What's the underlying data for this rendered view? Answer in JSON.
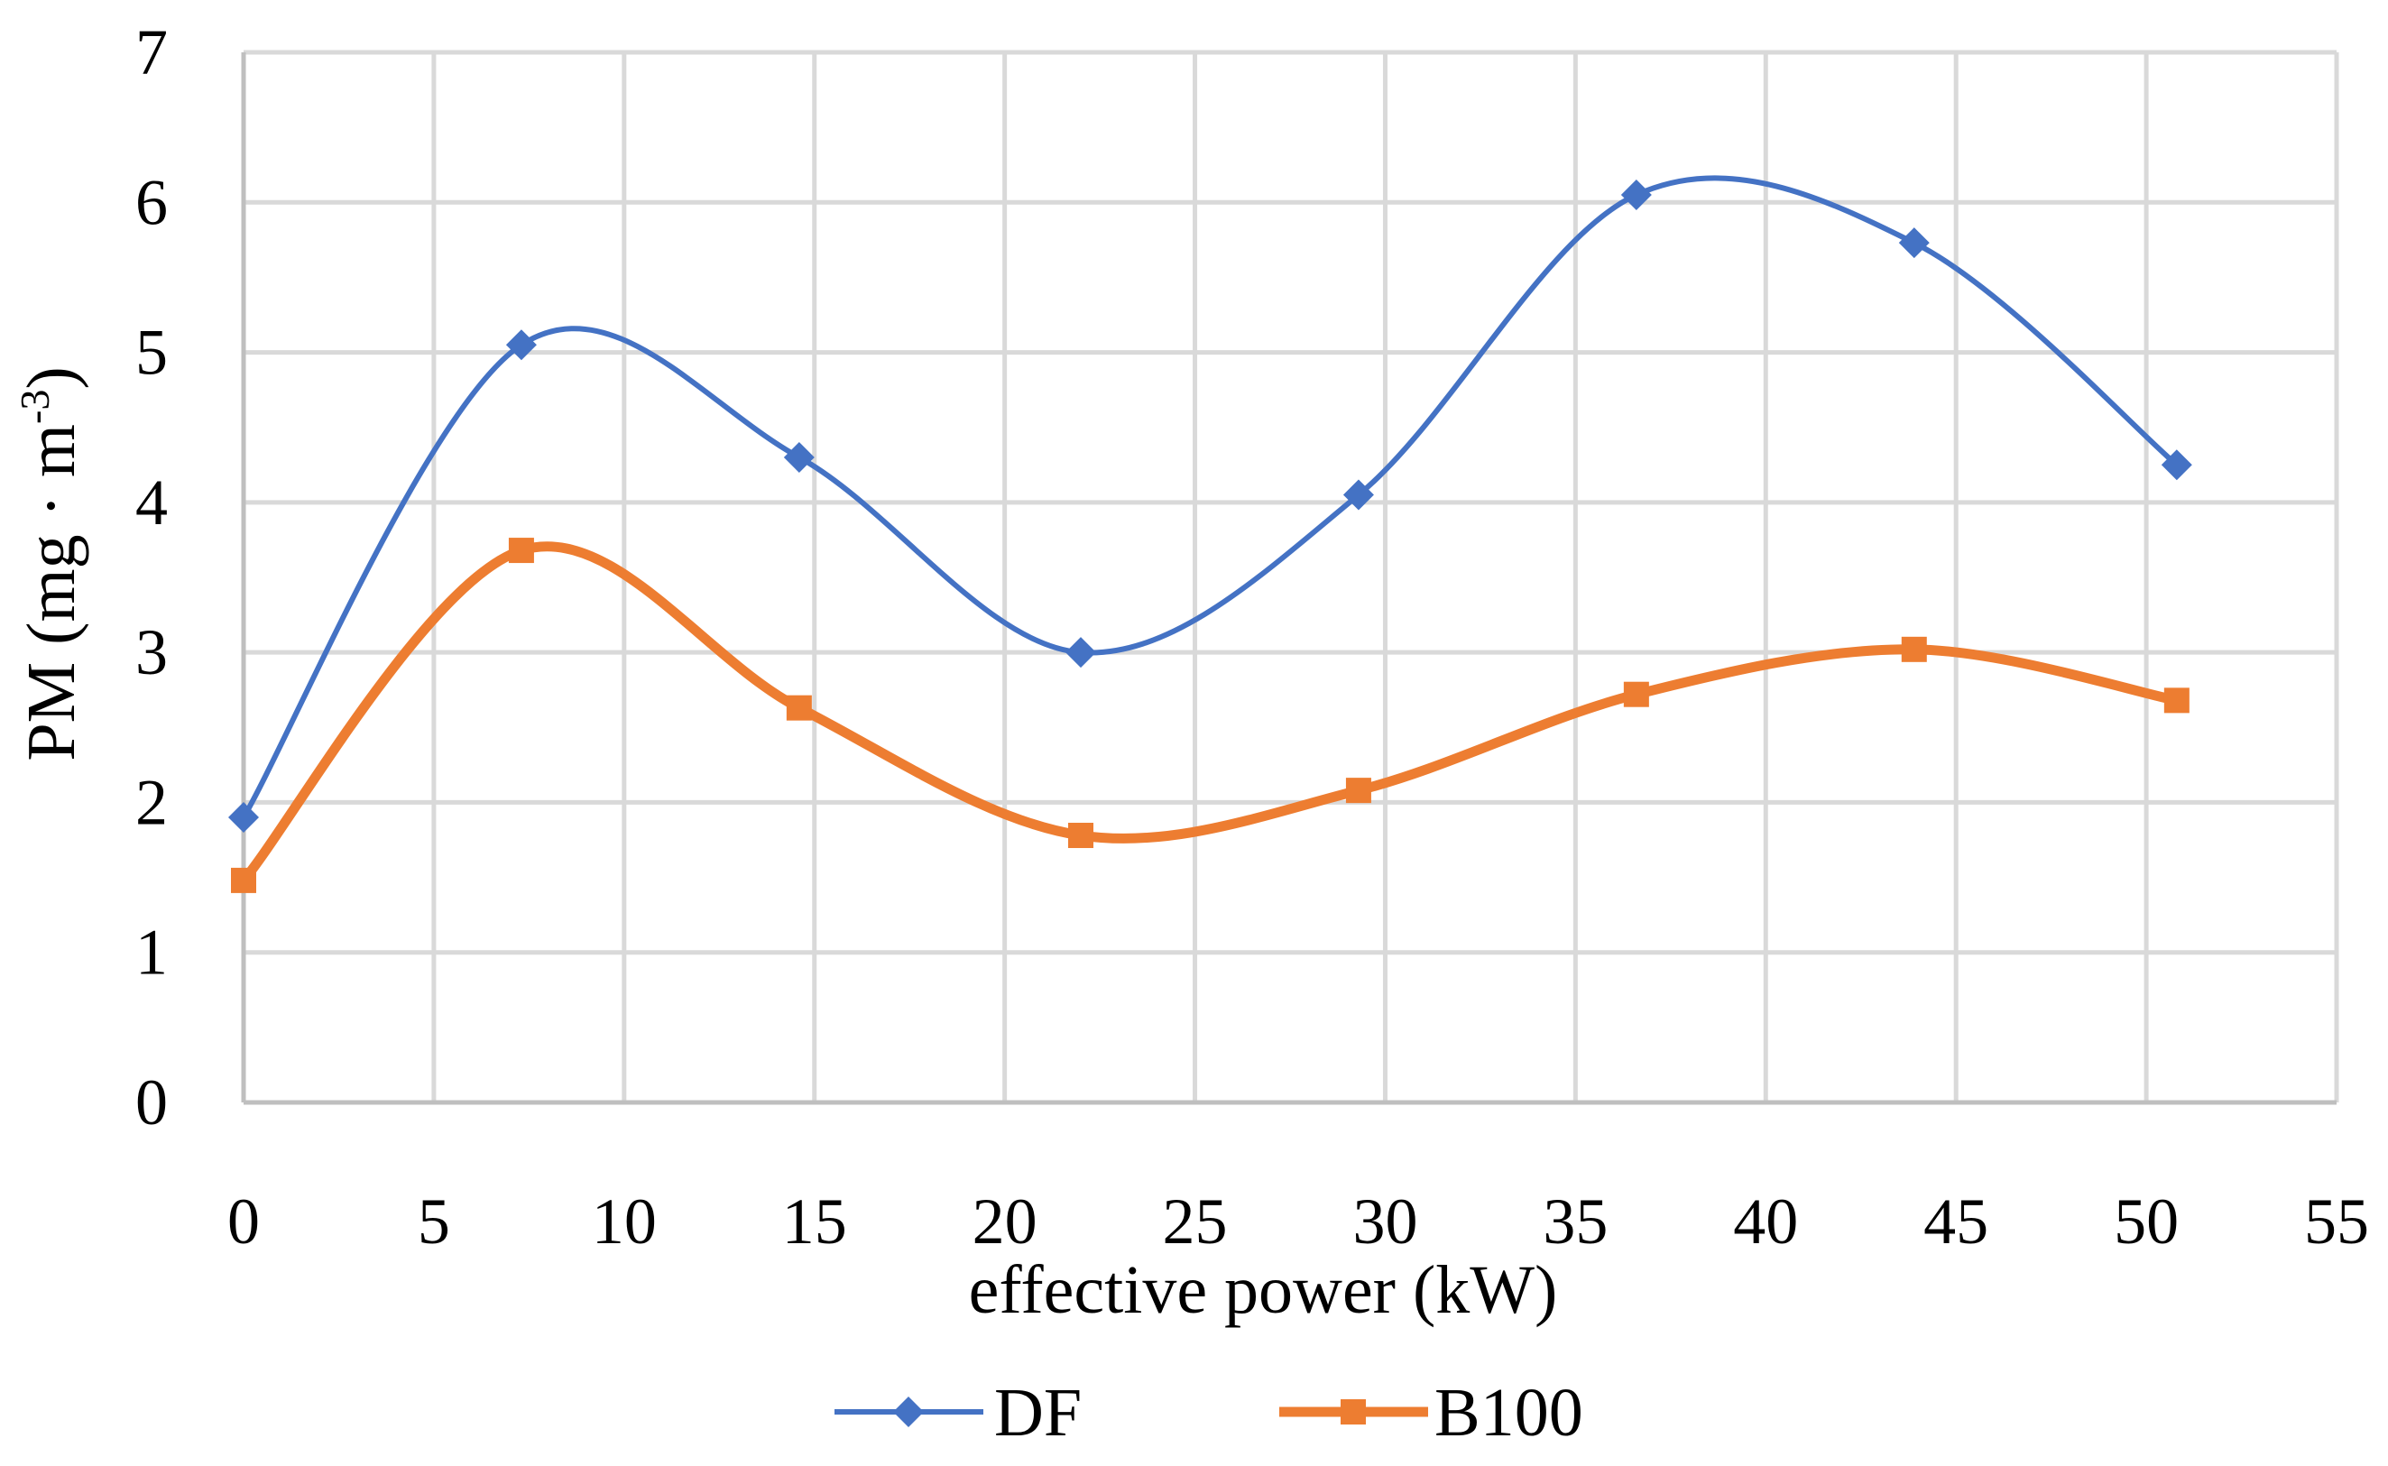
{
  "chart_data": {
    "type": "line",
    "smooth": true,
    "title": "",
    "xlabel": "effective power (kW)",
    "ylabel_text": "PM (mg · m",
    "ylabel_sup": "-3",
    "ylabel_close": ")",
    "xlim": [
      0,
      55
    ],
    "ylim": [
      0,
      7
    ],
    "xticks": [
      "0",
      "5",
      "10",
      "15",
      "20",
      "25",
      "30",
      "35",
      "40",
      "45",
      "50",
      "55"
    ],
    "yticks": [
      "0",
      "1",
      "2",
      "3",
      "4",
      "5",
      "6",
      "7"
    ],
    "grid": true,
    "legend_position": "bottom-center",
    "series": [
      {
        "name": "DF",
        "color": "#4472c4",
        "marker": "diamond",
        "x": [
          0,
          7.3,
          14.6,
          22.0,
          29.3,
          36.6,
          43.9,
          50.8
        ],
        "y": [
          1.9,
          5.05,
          4.3,
          3.0,
          4.05,
          6.05,
          5.73,
          4.25
        ]
      },
      {
        "name": "B100",
        "color": "#ed7d31",
        "marker": "square",
        "x": [
          0,
          7.3,
          14.6,
          22.0,
          29.3,
          36.6,
          43.9,
          50.8
        ],
        "y": [
          1.48,
          3.68,
          2.63,
          1.78,
          2.08,
          2.72,
          3.02,
          2.68
        ]
      }
    ]
  }
}
